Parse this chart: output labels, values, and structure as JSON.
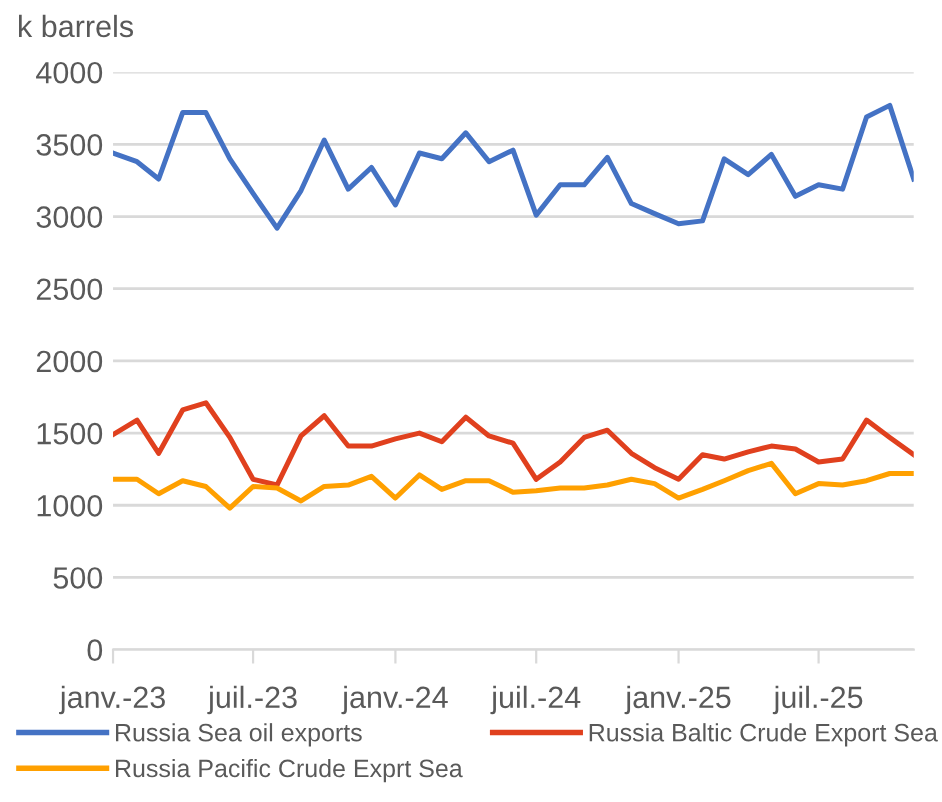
{
  "chart_data": {
    "type": "line",
    "ylabel": "k barrels",
    "x": [
      "2023-01",
      "2023-02",
      "2023-03",
      "2023-04",
      "2023-05",
      "2023-06",
      "2023-07",
      "2023-08",
      "2023-09",
      "2023-10",
      "2023-11",
      "2023-12",
      "2024-01",
      "2024-02",
      "2024-03",
      "2024-04",
      "2024-05",
      "2024-06",
      "2024-07",
      "2024-08",
      "2024-09",
      "2024-10",
      "2024-11",
      "2024-12",
      "2025-01",
      "2025-02",
      "2025-03",
      "2025-04",
      "2025-05",
      "2025-06",
      "2025-07",
      "2025-08",
      "2025-09",
      "2025-10",
      "2025-11"
    ],
    "series": [
      {
        "name": "Russia Sea oil exports",
        "color": "#4472c4",
        "values": [
          3440,
          3380,
          3260,
          3720,
          3720,
          3400,
          3160,
          2920,
          3180,
          3530,
          3190,
          3340,
          3080,
          3440,
          3400,
          3580,
          3380,
          3460,
          3010,
          3220,
          3220,
          3410,
          3090,
          3020,
          2950,
          2970,
          3400,
          3290,
          3430,
          3140,
          3220,
          3190,
          3690,
          3770,
          3260
        ]
      },
      {
        "name": "Russia Baltic Crude Export Sea",
        "color": "#e0401e",
        "values": [
          1490,
          1590,
          1360,
          1660,
          1710,
          1470,
          1180,
          1140,
          1480,
          1620,
          1410,
          1410,
          1460,
          1500,
          1440,
          1610,
          1480,
          1430,
          1180,
          1300,
          1470,
          1520,
          1360,
          1260,
          1180,
          1350,
          1320,
          1370,
          1410,
          1390,
          1300,
          1320,
          1590,
          1470,
          1350
        ]
      },
      {
        "name": "Russia Pacific Crude Exprt Sea",
        "color": "#ffa000",
        "values": [
          1180,
          1180,
          1080,
          1170,
          1130,
          980,
          1130,
          1120,
          1030,
          1130,
          1140,
          1200,
          1050,
          1210,
          1110,
          1170,
          1170,
          1090,
          1100,
          1120,
          1120,
          1140,
          1180,
          1150,
          1050,
          1110,
          1170,
          1240,
          1290,
          1080,
          1150,
          1140,
          1170,
          1220,
          1220
        ]
      }
    ],
    "xlim": [
      "2023-01",
      "2025-11"
    ],
    "xticks": [
      {
        "value": "2023-01",
        "label": "janv.-23"
      },
      {
        "value": "2023-07",
        "label": "juil.-23"
      },
      {
        "value": "2024-01",
        "label": "janv.-24"
      },
      {
        "value": "2024-07",
        "label": "juil.-24"
      },
      {
        "value": "2025-01",
        "label": "janv.-25"
      },
      {
        "value": "2025-07",
        "label": "juil.-25"
      }
    ],
    "ylim": [
      0,
      4000
    ],
    "yticks": [
      0,
      500,
      1000,
      1500,
      2000,
      2500,
      3000,
      3500,
      4000
    ],
    "grid": "y",
    "legend": "bottom"
  }
}
